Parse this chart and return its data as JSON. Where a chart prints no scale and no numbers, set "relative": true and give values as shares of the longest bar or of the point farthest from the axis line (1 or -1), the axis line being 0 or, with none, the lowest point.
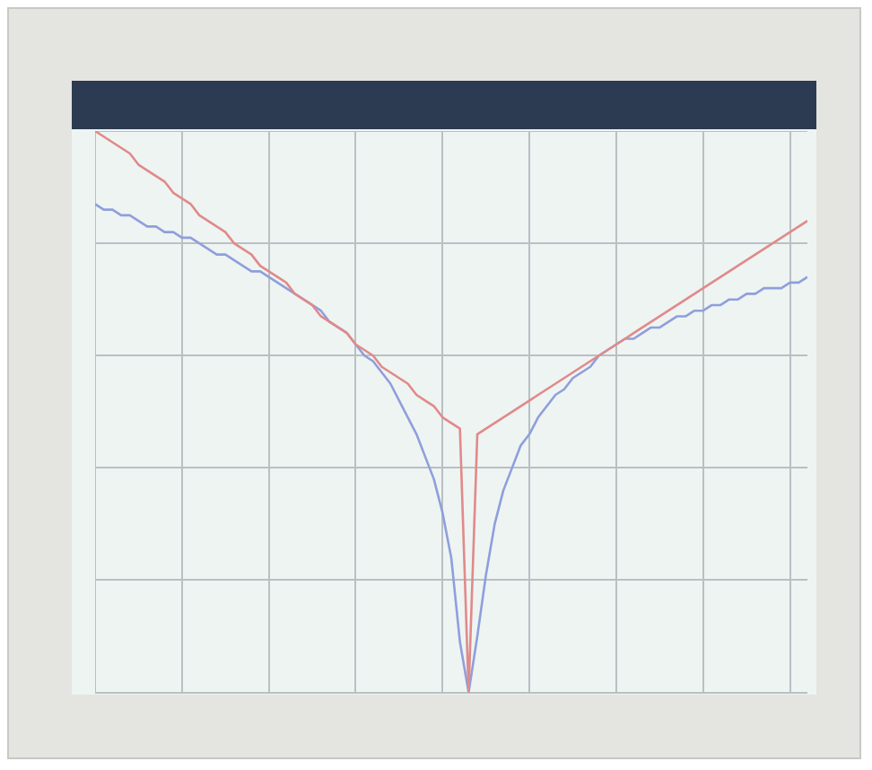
{
  "chart_data": {
    "type": "line",
    "relative": true,
    "grid": true,
    "legend": false,
    "marker": "none",
    "line_style": "solid",
    "categories": [
      null,
      null,
      null,
      null,
      null,
      null,
      null,
      null,
      null,
      null,
      null,
      null,
      null,
      null,
      null,
      null,
      null,
      null,
      null,
      null,
      null,
      null,
      null,
      null,
      null,
      null,
      null,
      null,
      null,
      null,
      null,
      null,
      null,
      null,
      null,
      null,
      null,
      null,
      null,
      null,
      null,
      null,
      null,
      null,
      null,
      null,
      null,
      null,
      null,
      null,
      null,
      null,
      null,
      null,
      null,
      null,
      null,
      null,
      null,
      null,
      null,
      null,
      null,
      null,
      null,
      null,
      null,
      null,
      null,
      null,
      null,
      null,
      null,
      null,
      null,
      null,
      null,
      null,
      null,
      null,
      null,
      null,
      null
    ],
    "series": [
      {
        "color": "#e08a8a",
        "values": [
          1.0,
          0.99,
          0.98,
          0.97,
          0.96,
          0.94,
          0.93,
          0.92,
          0.91,
          0.89,
          0.88,
          0.87,
          0.85,
          0.84,
          0.83,
          0.82,
          0.8,
          0.79,
          0.78,
          0.76,
          0.75,
          0.74,
          0.73,
          0.71,
          0.7,
          0.69,
          0.67,
          0.66,
          0.65,
          0.64,
          0.62,
          0.61,
          0.6,
          0.58,
          0.57,
          0.56,
          0.55,
          0.53,
          0.52,
          0.51,
          0.49,
          0.48,
          0.47,
          0,
          0.46,
          0.47,
          0.48,
          0.49,
          0.5,
          0.51,
          0.52,
          0.53,
          0.54,
          0.55,
          0.56,
          0.57,
          0.58,
          0.59,
          0.6,
          0.61,
          0.62,
          0.63,
          0.64,
          0.65,
          0.66,
          0.67,
          0.68,
          0.69,
          0.7,
          0.71,
          0.72,
          0.73,
          0.74,
          0.75,
          0.76,
          0.77,
          0.78,
          0.79,
          0.8,
          0.81,
          0.82,
          0.83,
          0.84
        ]
      },
      {
        "color": "#8f9fdc",
        "values": [
          0.87,
          0.86,
          0.86,
          0.85,
          0.85,
          0.84,
          0.83,
          0.83,
          0.82,
          0.82,
          0.81,
          0.81,
          0.8,
          0.79,
          0.78,
          0.78,
          0.77,
          0.76,
          0.75,
          0.75,
          0.74,
          0.73,
          0.72,
          0.71,
          0.7,
          0.69,
          0.68,
          0.66,
          0.65,
          0.64,
          0.62,
          0.6,
          0.59,
          0.57,
          0.55,
          0.52,
          0.49,
          0.46,
          0.42,
          0.38,
          0.32,
          0.24,
          0.09,
          0,
          0.1,
          0.21,
          0.3,
          0.36,
          0.4,
          0.44,
          0.46,
          0.49,
          0.51,
          0.53,
          0.54,
          0.56,
          0.57,
          0.58,
          0.6,
          0.61,
          0.62,
          0.63,
          0.63,
          0.64,
          0.65,
          0.65,
          0.66,
          0.67,
          0.67,
          0.68,
          0.68,
          0.69,
          0.69,
          0.7,
          0.7,
          0.71,
          0.71,
          0.72,
          0.72,
          0.72,
          0.73,
          0.73,
          0.74
        ]
      }
    ]
  }
}
